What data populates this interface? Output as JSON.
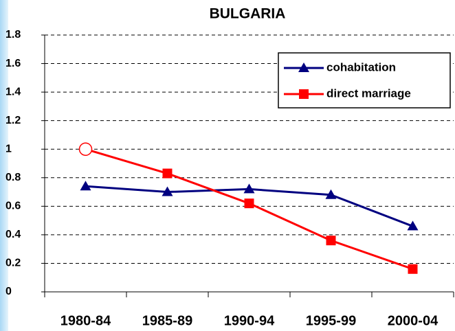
{
  "chart_data": {
    "type": "line",
    "title": "BULGARIA",
    "categories": [
      "1980-84",
      "1985-89",
      "1990-94",
      "1995-99",
      "2000-04"
    ],
    "series": [
      {
        "name": "cohabitation",
        "color": "#000080",
        "marker": "triangle",
        "values": [
          0.74,
          0.7,
          0.72,
          0.68,
          0.46
        ]
      },
      {
        "name": "direct marriage",
        "color": "#ff0000",
        "marker": "square",
        "point_markers": [
          "open-circle",
          "square",
          "square",
          "square",
          "square"
        ],
        "values": [
          1.0,
          0.83,
          0.62,
          0.36,
          0.16
        ]
      }
    ],
    "ylim": [
      0,
      1.8
    ],
    "yticks": [
      0,
      0.2,
      0.4,
      0.6,
      0.8,
      1,
      1.2,
      1.4,
      1.6,
      1.8
    ],
    "grid": true,
    "legend": "top-right"
  }
}
